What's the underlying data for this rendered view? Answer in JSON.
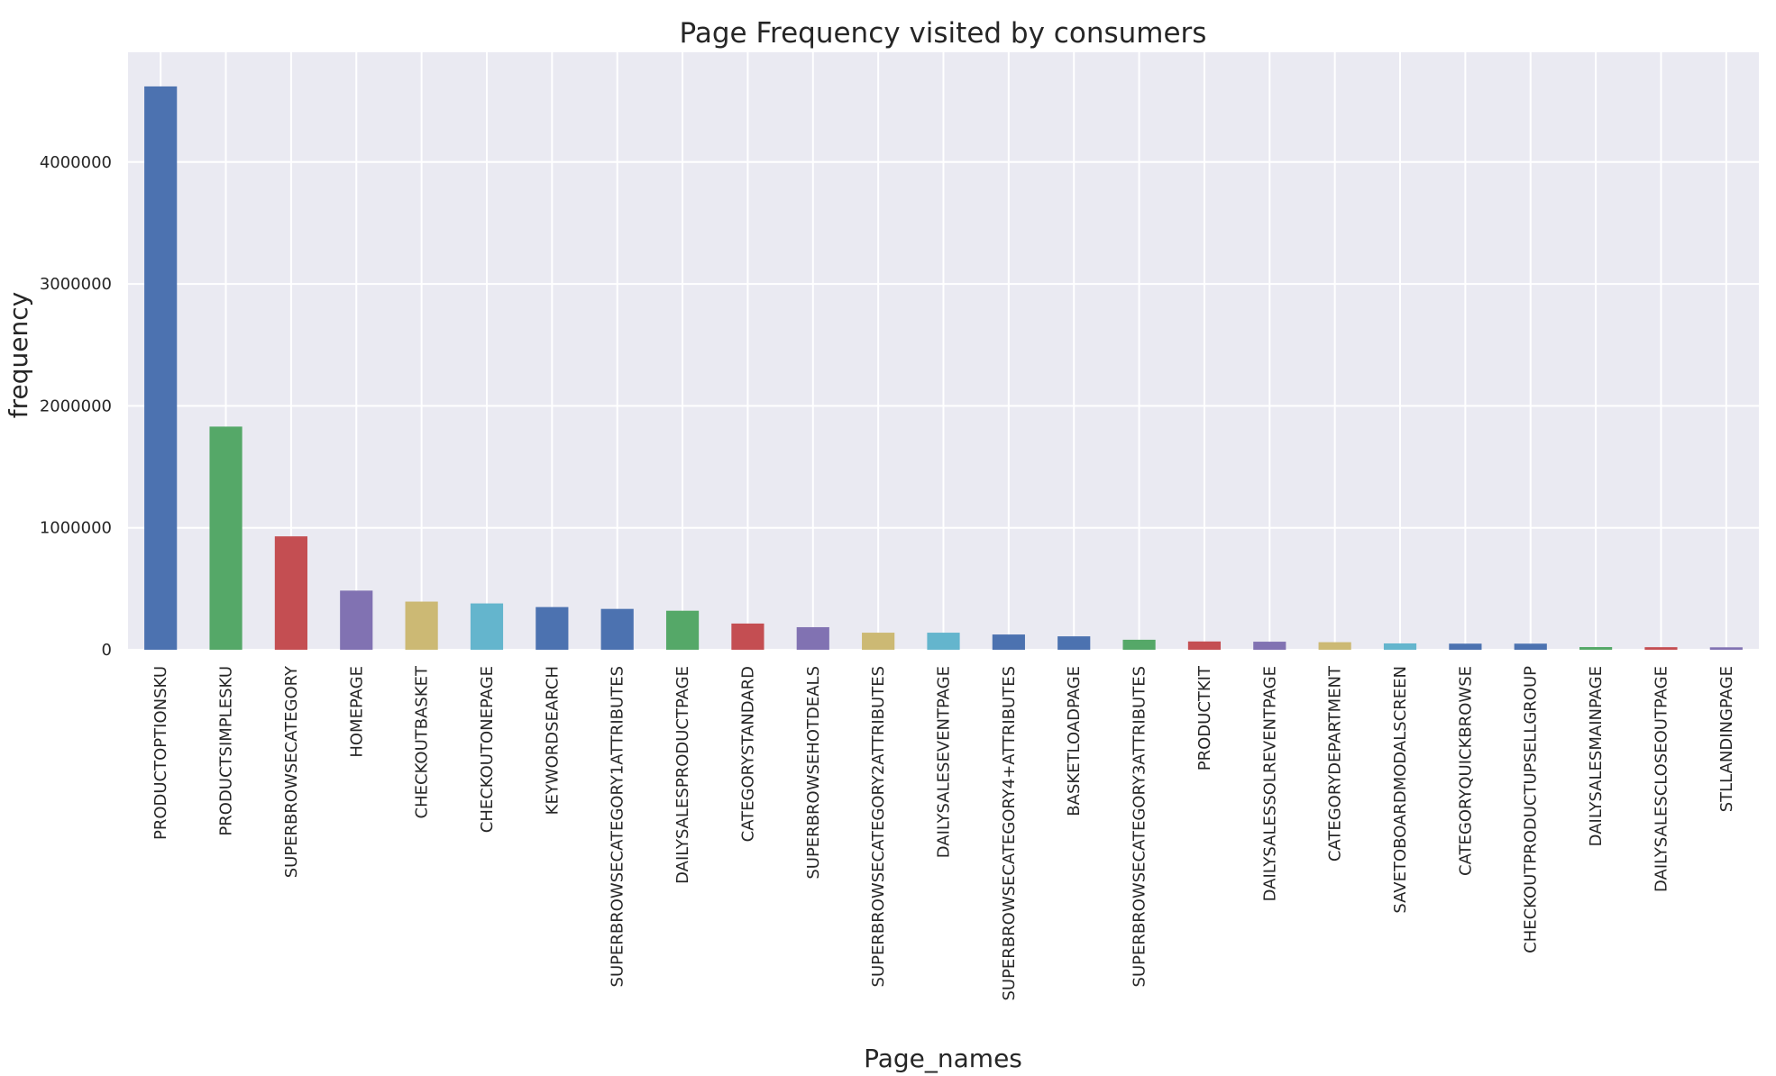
{
  "chart_data": {
    "type": "bar",
    "title": "Page Frequency visited by consumers",
    "xlabel": "Page_names",
    "ylabel": "frequency",
    "ylim": [
      0,
      4900000
    ],
    "yticks": [
      0,
      1000000,
      2000000,
      3000000,
      4000000
    ],
    "ytick_labels": [
      "0",
      "1000000",
      "2000000",
      "3000000",
      "4000000"
    ],
    "grid": true,
    "categories": [
      "PRODUCTOPTIONSKU",
      "PRODUCTSIMPLESKU",
      "SUPERBROWSECATEGORY",
      "HOMEPAGE",
      "CHECKOUTBASKET",
      "CHECKOUTONEPAGE",
      "KEYWORDSEARCH",
      "SUPERBROWSECATEGORY1ATTRIBUTES",
      "DAILYSALESPRODUCTPAGE",
      "CATEGORYSTANDARD",
      "SUPERBROWSEHOTDEALS",
      "SUPERBROWSECATEGORY2ATTRIBUTES",
      "DAILYSALESEVENTPAGE",
      "SUPERBROWSECATEGORY4+ATTRIBUTES",
      "BASKETLOADPAGE",
      "SUPERBROWSECATEGORY3ATTRIBUTES",
      "PRODUCTKIT",
      "DAILYSALESSOLREVENTPAGE",
      "CATEGORYDEPARTMENT",
      "SAVETOBOARDMODALSCREEN",
      "CATEGORYQUICKBROWSE",
      "CHECKOUTPRODUCTUPSELLGROUP",
      "DAILYSALESMAINPAGE",
      "DAILYSALESCLOSEOUTPAGE",
      "STLLANDINGPAGE"
    ],
    "values": [
      4620000,
      1830000,
      930000,
      485000,
      395000,
      380000,
      350000,
      335000,
      320000,
      215000,
      185000,
      140000,
      140000,
      125000,
      110000,
      82000,
      68000,
      66000,
      62000,
      52000,
      50000,
      50000,
      22000,
      21000,
      20000
    ],
    "colors": [
      "#4c72b0",
      "#55a868",
      "#c44e52",
      "#8172b2",
      "#ccb974",
      "#64b5cd",
      "#4c72b0",
      "#4c72b0",
      "#55a868",
      "#c44e52",
      "#8172b2",
      "#ccb974",
      "#64b5cd",
      "#4c72b0",
      "#4c72b0",
      "#55a868",
      "#c44e52",
      "#8172b2",
      "#ccb974",
      "#64b5cd",
      "#4c72b0",
      "#4c72b0",
      "#55a868",
      "#c44e52",
      "#8172b2"
    ],
    "background_color": "#eaeaf2"
  }
}
